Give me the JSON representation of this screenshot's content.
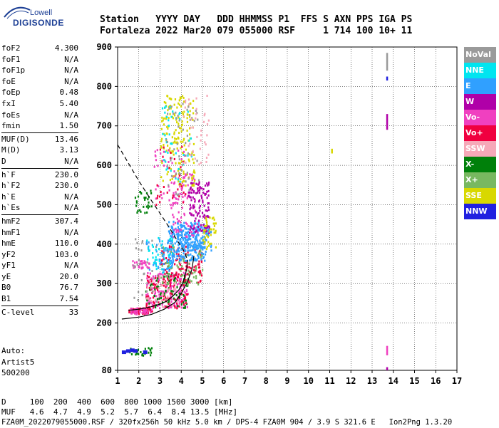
{
  "logo": {
    "line1": "Lowell",
    "line2": "DIGISONDE"
  },
  "header": {
    "line1": "Station   YYYY DAY   DDD HHMMSS P1  FFS S AXN PPS IGA PS",
    "line2": "Fortaleza 2022 Mar20 079 055000 RSF     1 714 100 10+ 11"
  },
  "params": {
    "group1": [
      {
        "label": "foF2",
        "value": "4.300"
      },
      {
        "label": "foF1",
        "value": "N/A"
      },
      {
        "label": "foF1p",
        "value": "N/A"
      },
      {
        "label": "foE",
        "value": "N/A"
      },
      {
        "label": "foEp",
        "value": "0.48"
      },
      {
        "label": "fxI",
        "value": "5.40"
      },
      {
        "label": "foEs",
        "value": "N/A"
      },
      {
        "label": "fmin",
        "value": "1.50"
      }
    ],
    "group2": [
      {
        "label": "MUF(D)",
        "value": "13.46"
      },
      {
        "label": "M(D)",
        "value": "3.13"
      },
      {
        "label": "D",
        "value": "N/A"
      }
    ],
    "group3": [
      {
        "label": "h`F",
        "value": "230.0"
      },
      {
        "label": "h`F2",
        "value": "230.0"
      },
      {
        "label": "h`E",
        "value": "N/A"
      },
      {
        "label": "h`Es",
        "value": "N/A"
      }
    ],
    "group4": [
      {
        "label": "hmF2",
        "value": "307.4"
      },
      {
        "label": "hmF1",
        "value": "N/A"
      },
      {
        "label": "hmE",
        "value": "110.0"
      },
      {
        "label": "yF2",
        "value": "103.0"
      },
      {
        "label": "yF1",
        "value": "N/A"
      },
      {
        "label": "yE",
        "value": "20.0"
      },
      {
        "label": "B0",
        "value": "76.7"
      },
      {
        "label": "B1",
        "value": "7.54"
      }
    ],
    "group5": [
      {
        "label": "C-level",
        "value": "33"
      }
    ]
  },
  "auto": {
    "line1": "Auto:",
    "line2": "Artist5",
    "line3": "500200"
  },
  "footer": {
    "d_line": "D     100  200  400  600  800 1000 1500 3000 [km]",
    "muf_line": "MUF   4.6  4.7  4.9  5.2  5.7  6.4  8.4 13.5 [MHz]",
    "info_line": "FZA0M_2022079055000.RSF / 320fx256h 50 kHz 5.0 km / DPS-4 FZA0M 904 / 3.9 S 321.6 E   Ion2Png 1.3.20"
  },
  "legend": [
    {
      "label": "NoVal",
      "color": "#9a9a9a"
    },
    {
      "label": "NNE",
      "color": "#00e5f0"
    },
    {
      "label": "E",
      "color": "#30a0ff"
    },
    {
      "label": "W",
      "color": "#b000a8"
    },
    {
      "label": "Vo-",
      "color": "#f040c0"
    },
    {
      "label": "Vo+",
      "color": "#f00040"
    },
    {
      "label": "SSW",
      "color": "#f6a8b8"
    },
    {
      "label": "X-",
      "color": "#00800a"
    },
    {
      "label": "X+",
      "color": "#78b860"
    },
    {
      "label": "SSE",
      "color": "#d8d800"
    },
    {
      "label": "NNW",
      "color": "#2020e0"
    }
  ],
  "chart_data": {
    "type": "scatter",
    "x_ticks": [
      "1",
      "2",
      "3",
      "4",
      "5",
      "6",
      "7",
      "8",
      "9",
      "10",
      "11",
      "12",
      "13",
      "14",
      "15",
      "16",
      "17"
    ],
    "y_ticks": [
      "80",
      "200",
      "300",
      "400",
      "500",
      "600",
      "700",
      "800",
      "900"
    ],
    "xlim": [
      1,
      17
    ],
    "ylim": [
      80,
      900
    ],
    "grid": true,
    "trace_O": [
      [
        1.5,
        232
      ],
      [
        2.0,
        235
      ],
      [
        2.5,
        240
      ],
      [
        3.0,
        248
      ],
      [
        3.3,
        255
      ],
      [
        3.6,
        268
      ],
      [
        3.9,
        285
      ],
      [
        4.1,
        305
      ],
      [
        4.25,
        335
      ],
      [
        4.3,
        360
      ]
    ],
    "trace_X": [
      [
        1.2,
        210
      ],
      [
        2.0,
        215
      ],
      [
        2.6,
        222
      ],
      [
        3.2,
        235
      ],
      [
        3.7,
        252
      ],
      [
        4.0,
        275
      ],
      [
        4.3,
        305
      ],
      [
        4.5,
        335
      ],
      [
        4.6,
        370
      ]
    ],
    "dashed_profile": [
      [
        1.0,
        652
      ],
      [
        2.0,
        560
      ],
      [
        2.6,
        510
      ],
      [
        3.0,
        478
      ],
      [
        3.4,
        445
      ],
      [
        3.8,
        410
      ],
      [
        4.1,
        385
      ],
      [
        4.3,
        360
      ]
    ],
    "e_layer_echoes": [
      [
        1.3,
        125
      ],
      [
        1.5,
        128
      ],
      [
        1.7,
        130
      ],
      [
        1.85,
        128
      ],
      [
        2.3,
        125
      ]
    ],
    "off_chart_markers": [
      {
        "x": 13.7,
        "y_from": 840,
        "y_to": 885,
        "color": "#9a9a9a"
      },
      {
        "x": 13.7,
        "y_from": 815,
        "y_to": 825,
        "color": "#2020e0"
      },
      {
        "x": 13.7,
        "y_from": 690,
        "y_to": 730,
        "color": "#b000a8"
      },
      {
        "x": 13.7,
        "y_from": 118,
        "y_to": 142,
        "color": "#f040c0"
      },
      {
        "x": 13.7,
        "y_from": 80,
        "y_to": 88,
        "color": "#b000a8"
      },
      {
        "x": 11.1,
        "y_from": 630,
        "y_to": 642,
        "color": "#d8d800"
      }
    ],
    "echo_regions": [
      {
        "x": [
          1.5,
          2.6
        ],
        "y": [
          225,
          240
        ],
        "color": "#f00040",
        "n": 60
      },
      {
        "x": [
          1.5,
          2.6
        ],
        "y": [
          225,
          240
        ],
        "color": "#f040c0",
        "n": 40
      },
      {
        "x": [
          2.3,
          4.3
        ],
        "y": [
          240,
          330
        ],
        "color": "#f040c0",
        "n": 180
      },
      {
        "x": [
          2.3,
          4.3
        ],
        "y": [
          240,
          330
        ],
        "color": "#00800a",
        "n": 90
      },
      {
        "x": [
          2.3,
          4.3
        ],
        "y": [
          240,
          330
        ],
        "color": "#f00040",
        "n": 90
      },
      {
        "x": [
          3.0,
          5.0
        ],
        "y": [
          300,
          400
        ],
        "color": "#f00040",
        "n": 120
      },
      {
        "x": [
          3.0,
          5.0
        ],
        "y": [
          300,
          400
        ],
        "color": "#78b860",
        "n": 80
      },
      {
        "x": [
          3.3,
          5.1
        ],
        "y": [
          360,
          460
        ],
        "color": "#30a0ff",
        "n": 220
      },
      {
        "x": [
          3.8,
          5.4
        ],
        "y": [
          380,
          450
        ],
        "color": "#30a0ff",
        "n": 120
      },
      {
        "x": [
          3.5,
          4.8
        ],
        "y": [
          420,
          580
        ],
        "color": "#f040c0",
        "n": 90
      },
      {
        "x": [
          4.3,
          5.3
        ],
        "y": [
          430,
          560
        ],
        "color": "#b000a8",
        "n": 120
      },
      {
        "x": [
          2.3,
          3.6
        ],
        "y": [
          330,
          420
        ],
        "color": "#30a0ff",
        "n": 60
      },
      {
        "x": [
          2.3,
          3.6
        ],
        "y": [
          330,
          420
        ],
        "color": "#00e5f0",
        "n": 40
      },
      {
        "x": [
          3.0,
          4.6
        ],
        "y": [
          550,
          780
        ],
        "color": "#d8d800",
        "n": 180
      },
      {
        "x": [
          2.7,
          4.2
        ],
        "y": [
          500,
          650
        ],
        "color": "#f040c0",
        "n": 40
      },
      {
        "x": [
          2.7,
          4.2
        ],
        "y": [
          500,
          650
        ],
        "color": "#f00040",
        "n": 30
      },
      {
        "x": [
          3.0,
          4.5
        ],
        "y": [
          560,
          760
        ],
        "color": "#00e5f0",
        "n": 40
      },
      {
        "x": [
          3.2,
          4.8
        ],
        "y": [
          520,
          760
        ],
        "color": "#9a9a9a",
        "n": 50
      },
      {
        "x": [
          1.8,
          2.6
        ],
        "y": [
          480,
          540
        ],
        "color": "#00800a",
        "n": 30
      },
      {
        "x": [
          1.6,
          2.5
        ],
        "y": [
          340,
          360
        ],
        "color": "#f040c0",
        "n": 30
      },
      {
        "x": [
          5.0,
          5.6
        ],
        "y": [
          390,
          470
        ],
        "color": "#d8d800",
        "n": 40
      },
      {
        "x": [
          4.0,
          5.3
        ],
        "y": [
          600,
          780
        ],
        "color": "#f6a8b8",
        "n": 40
      },
      {
        "x": [
          2.3,
          3.8
        ],
        "y": [
          240,
          320
        ],
        "color": "#f6a8b8",
        "n": 40
      },
      {
        "x": [
          1.7,
          2.9
        ],
        "y": [
          250,
          420
        ],
        "color": "#9a9a9a",
        "n": 30
      },
      {
        "x": [
          1.5,
          2.6
        ],
        "y": [
          120,
          140
        ],
        "color": "#00800a",
        "n": 25
      }
    ]
  }
}
